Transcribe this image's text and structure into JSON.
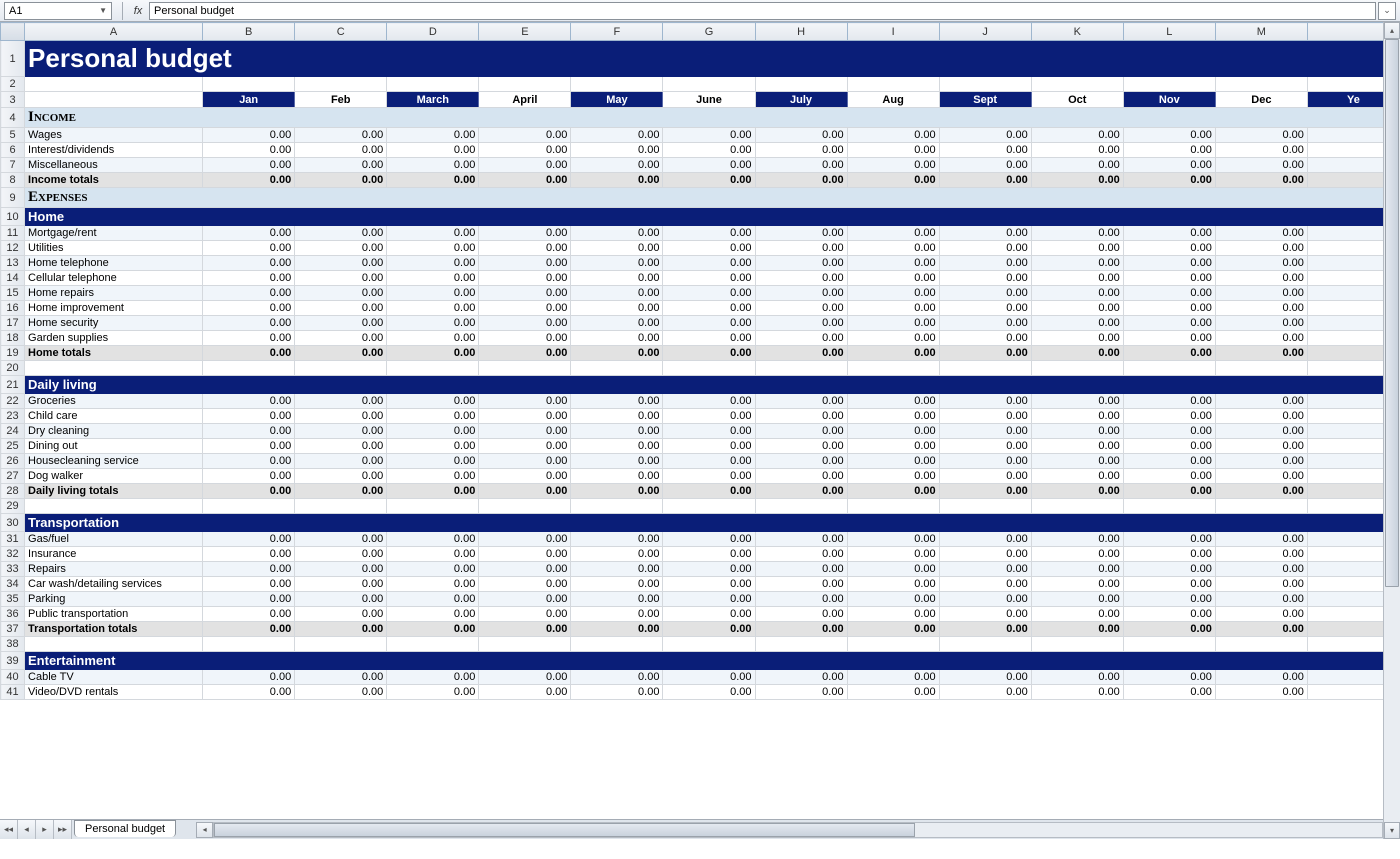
{
  "cellRef": "A1",
  "formulaValue": "Personal budget",
  "sheetTab": "Personal budget",
  "columns": [
    "A",
    "B",
    "C",
    "D",
    "E",
    "F",
    "G",
    "H",
    "I",
    "J",
    "K",
    "L",
    "M"
  ],
  "months": [
    "Jan",
    "Feb",
    "March",
    "April",
    "May",
    "June",
    "July",
    "Aug",
    "Sept",
    "Oct",
    "Nov",
    "Dec"
  ],
  "monthDark": [
    true,
    false,
    true,
    false,
    true,
    false,
    true,
    false,
    true,
    false,
    true,
    false
  ],
  "lastColLabel": "Ye",
  "title": "Personal budget",
  "zeroVal": "0.00",
  "rows": [
    {
      "n": 1,
      "type": "title"
    },
    {
      "n": 2,
      "type": "blank"
    },
    {
      "n": 3,
      "type": "months"
    },
    {
      "n": 4,
      "type": "section",
      "label": "Income"
    },
    {
      "n": 5,
      "type": "data",
      "label": "Wages",
      "alt": false
    },
    {
      "n": 6,
      "type": "data",
      "label": "Interest/dividends",
      "alt": true
    },
    {
      "n": 7,
      "type": "data",
      "label": "Miscellaneous",
      "alt": false
    },
    {
      "n": 8,
      "type": "totals",
      "label": "Income totals"
    },
    {
      "n": 9,
      "type": "section",
      "label": "Expenses"
    },
    {
      "n": 10,
      "type": "subsection",
      "label": "Home"
    },
    {
      "n": 11,
      "type": "data",
      "label": "Mortgage/rent",
      "alt": false
    },
    {
      "n": 12,
      "type": "data",
      "label": "Utilities",
      "alt": true
    },
    {
      "n": 13,
      "type": "data",
      "label": "Home telephone",
      "alt": false
    },
    {
      "n": 14,
      "type": "data",
      "label": "Cellular telephone",
      "alt": true
    },
    {
      "n": 15,
      "type": "data",
      "label": "Home repairs",
      "alt": false
    },
    {
      "n": 16,
      "type": "data",
      "label": "Home improvement",
      "alt": true
    },
    {
      "n": 17,
      "type": "data",
      "label": "Home security",
      "alt": false
    },
    {
      "n": 18,
      "type": "data",
      "label": "Garden supplies",
      "alt": true
    },
    {
      "n": 19,
      "type": "totals",
      "label": "Home totals"
    },
    {
      "n": 20,
      "type": "blank"
    },
    {
      "n": 21,
      "type": "subsection",
      "label": "Daily living"
    },
    {
      "n": 22,
      "type": "data",
      "label": "Groceries",
      "alt": false
    },
    {
      "n": 23,
      "type": "data",
      "label": "Child care",
      "alt": true
    },
    {
      "n": 24,
      "type": "data",
      "label": "Dry cleaning",
      "alt": false
    },
    {
      "n": 25,
      "type": "data",
      "label": "Dining out",
      "alt": true
    },
    {
      "n": 26,
      "type": "data",
      "label": "Housecleaning service",
      "alt": false
    },
    {
      "n": 27,
      "type": "data",
      "label": "Dog walker",
      "alt": true
    },
    {
      "n": 28,
      "type": "totals",
      "label": "Daily living totals"
    },
    {
      "n": 29,
      "type": "blank"
    },
    {
      "n": 30,
      "type": "subsection",
      "label": "Transportation"
    },
    {
      "n": 31,
      "type": "data",
      "label": "Gas/fuel",
      "alt": false
    },
    {
      "n": 32,
      "type": "data",
      "label": "Insurance",
      "alt": true
    },
    {
      "n": 33,
      "type": "data",
      "label": "Repairs",
      "alt": false
    },
    {
      "n": 34,
      "type": "data",
      "label": "Car wash/detailing services",
      "alt": true
    },
    {
      "n": 35,
      "type": "data",
      "label": "Parking",
      "alt": false
    },
    {
      "n": 36,
      "type": "data",
      "label": "Public transportation",
      "alt": true
    },
    {
      "n": 37,
      "type": "totals",
      "label": "Transportation totals"
    },
    {
      "n": 38,
      "type": "blank"
    },
    {
      "n": 39,
      "type": "subsection",
      "label": "Entertainment"
    },
    {
      "n": 40,
      "type": "data",
      "label": "Cable TV",
      "alt": false
    },
    {
      "n": 41,
      "type": "data",
      "label": "Video/DVD rentals",
      "alt": true
    }
  ],
  "colors": {
    "darkBlue": "#0a1e78",
    "lightBlue": "#d6e4f0",
    "rowLight": "#f0f5fa",
    "totalsGray": "#e2e2e2"
  }
}
